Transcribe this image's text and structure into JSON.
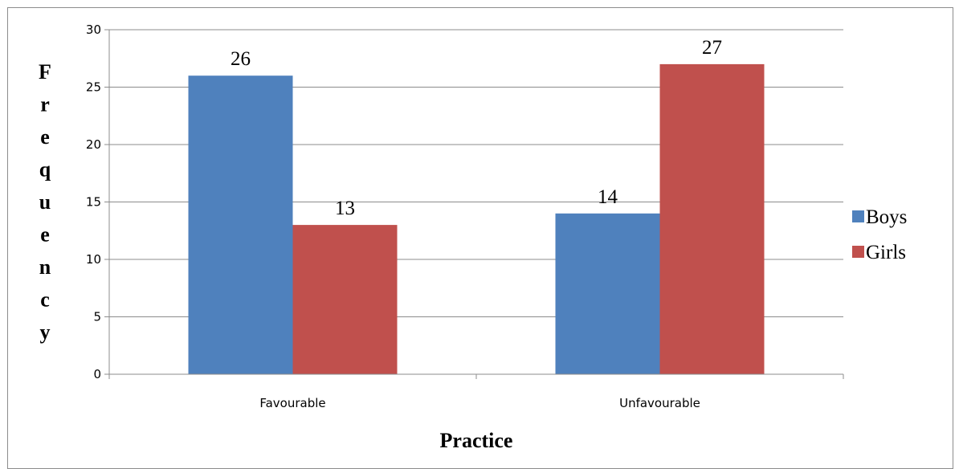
{
  "chart_data": {
    "type": "bar",
    "categories": [
      "Favourable",
      "Unfavourable"
    ],
    "series": [
      {
        "name": "Boys",
        "values": [
          26,
          14
        ],
        "color": "#4f81bd"
      },
      {
        "name": "Girls",
        "values": [
          13,
          27
        ],
        "color": "#c0504d"
      }
    ],
    "xlabel": "Practice",
    "ylabel": "Frequency",
    "ylim": [
      0,
      30
    ],
    "yticks": [
      0,
      5,
      10,
      15,
      20,
      25,
      30
    ],
    "grid": true,
    "legend_position": "right",
    "data_labels": true
  }
}
